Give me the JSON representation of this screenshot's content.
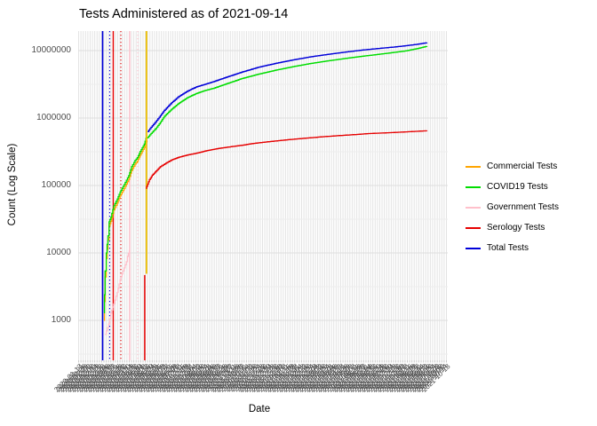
{
  "title": "Tests Administered as of 2021-09-14",
  "x_axis": {
    "label": "Date",
    "start_date": "2020-03-01",
    "tick_step_days": 4,
    "tick_first_day": -44,
    "tick_last_day": 596,
    "tick_label_format": "YYYY-MM-DD"
  },
  "y_axis": {
    "label": "Count (Log Scale)",
    "scale": "log10",
    "tick_labels": [
      "10000000",
      "1000000",
      "100000",
      "10000",
      "1000"
    ],
    "tick_values": [
      10000000,
      1000000,
      100000,
      10000,
      1000
    ]
  },
  "legend": {
    "items": [
      {
        "label": "Commercial Tests",
        "color": "#FFA500"
      },
      {
        "label": "COVID19 Tests",
        "color": "#00DD00"
      },
      {
        "label": "Government Tests",
        "color": "#FFC0CB"
      },
      {
        "label": "Serology Tests",
        "color": "#E60000"
      },
      {
        "label": "Total Tests",
        "color": "#0000D9"
      }
    ]
  },
  "chart_data": {
    "type": "line",
    "title": "Tests Administered as of 2021-09-14",
    "xlabel": "Date",
    "ylabel": "Count (Log Scale)",
    "x_unit": "days since 2020-03-01",
    "y_scale": "log10",
    "ylim": [
      280,
      20000000
    ],
    "grid": {
      "x_step_days": 4,
      "y_major_decades": [
        3,
        4,
        5,
        6,
        7
      ],
      "y_minor_half_decades": [
        2.5,
        3.5,
        4.5,
        5.5,
        6.5
      ]
    },
    "series": [
      {
        "name": "Commercial Tests",
        "color": "#FFA500",
        "points": [
          [
            0,
            1000
          ],
          [
            1,
            1900
          ],
          [
            2,
            4400
          ],
          [
            4,
            8300
          ],
          [
            7,
            15500
          ],
          [
            9,
            25000
          ],
          [
            12,
            29500
          ],
          [
            17,
            43500
          ],
          [
            23,
            55000
          ],
          [
            28,
            70000
          ],
          [
            35,
            90000
          ],
          [
            43,
            123000
          ],
          [
            48,
            167000
          ],
          [
            54,
            207000
          ],
          [
            58,
            228000
          ],
          [
            63,
            283000
          ],
          [
            70,
            365000
          ],
          [
            73,
            445000
          ],
          [
            75,
            465000
          ]
        ]
      },
      {
        "name": "COVID19 Tests",
        "color": "#00DD00",
        "points": [
          [
            0,
            1300
          ],
          [
            1,
            2400
          ],
          [
            2,
            5400
          ],
          [
            4,
            10000
          ],
          [
            7,
            18000
          ],
          [
            9,
            29000
          ],
          [
            12,
            34000
          ],
          [
            17,
            50000
          ],
          [
            23,
            63000
          ],
          [
            28,
            80000
          ],
          [
            35,
            103000
          ],
          [
            43,
            140000
          ],
          [
            48,
            190000
          ],
          [
            54,
            235000
          ],
          [
            58,
            258000
          ],
          [
            63,
            320000
          ],
          [
            70,
            410000
          ],
          [
            73,
            500000
          ],
          [
            76,
            515000
          ],
          [
            82,
            590000
          ],
          [
            90,
            700000
          ],
          [
            98,
            860000
          ],
          [
            105,
            1060000
          ],
          [
            118,
            1360000
          ],
          [
            130,
            1650000
          ],
          [
            145,
            2000000
          ],
          [
            160,
            2300000
          ],
          [
            175,
            2550000
          ],
          [
            190,
            2750000
          ],
          [
            210,
            3150000
          ],
          [
            240,
            3850000
          ],
          [
            270,
            4500000
          ],
          [
            300,
            5150000
          ],
          [
            330,
            5800000
          ],
          [
            360,
            6450000
          ],
          [
            390,
            7050000
          ],
          [
            420,
            7650000
          ],
          [
            450,
            8250000
          ],
          [
            480,
            8850000
          ],
          [
            505,
            9400000
          ],
          [
            525,
            9900000
          ],
          [
            545,
            10700000
          ],
          [
            562,
            11600000
          ]
        ]
      },
      {
        "name": "Government Tests",
        "color": "#FFC0CB",
        "points": [
          [
            2,
            620
          ],
          [
            8,
            880
          ],
          [
            12,
            1280
          ],
          [
            17,
            1750
          ],
          [
            23,
            2600
          ],
          [
            28,
            4000
          ],
          [
            33,
            5400
          ],
          [
            39,
            7400
          ],
          [
            41,
            8900
          ],
          [
            44,
            11000
          ]
        ]
      },
      {
        "name": "Serology Tests",
        "color": "#E60000",
        "points": [
          [
            73,
            91000
          ],
          [
            76,
            105000
          ],
          [
            79,
            122000
          ],
          [
            84,
            142000
          ],
          [
            89,
            158000
          ],
          [
            98,
            190000
          ],
          [
            108,
            215000
          ],
          [
            118,
            240000
          ],
          [
            130,
            262000
          ],
          [
            145,
            283000
          ],
          [
            160,
            300000
          ],
          [
            180,
            330000
          ],
          [
            200,
            355000
          ],
          [
            220,
            375000
          ],
          [
            240,
            395000
          ],
          [
            260,
            420000
          ],
          [
            280,
            440000
          ],
          [
            300,
            458000
          ],
          [
            320,
            477000
          ],
          [
            340,
            494000
          ],
          [
            360,
            511000
          ],
          [
            380,
            527000
          ],
          [
            400,
            543000
          ],
          [
            420,
            557000
          ],
          [
            440,
            571000
          ],
          [
            460,
            588000
          ],
          [
            480,
            598000
          ],
          [
            500,
            608000
          ],
          [
            520,
            620000
          ],
          [
            540,
            633000
          ],
          [
            562,
            648000
          ]
        ]
      },
      {
        "name": "Total Tests",
        "color": "#0000D9",
        "points": [
          [
            76,
            630000
          ],
          [
            82,
            730000
          ],
          [
            90,
            880000
          ],
          [
            98,
            1080000
          ],
          [
            105,
            1300000
          ],
          [
            118,
            1700000
          ],
          [
            130,
            2080000
          ],
          [
            145,
            2500000
          ],
          [
            160,
            2880000
          ],
          [
            175,
            3150000
          ],
          [
            190,
            3450000
          ],
          [
            210,
            3950000
          ],
          [
            240,
            4800000
          ],
          [
            270,
            5700000
          ],
          [
            300,
            6500000
          ],
          [
            330,
            7300000
          ],
          [
            360,
            8100000
          ],
          [
            390,
            8800000
          ],
          [
            420,
            9500000
          ],
          [
            450,
            10200000
          ],
          [
            480,
            10800000
          ],
          [
            505,
            11300000
          ],
          [
            525,
            11800000
          ],
          [
            545,
            12400000
          ],
          [
            562,
            13100000
          ]
        ]
      }
    ],
    "spike_segments": [
      {
        "series": "Serology Tests",
        "color": "#E60000",
        "x_day": 71,
        "from": 285,
        "to": 4700
      }
    ],
    "vlines": [
      {
        "color": "#0000D9",
        "style": "solid",
        "x_day": -2.3,
        "width": 1.6
      },
      {
        "color": "#0000D9",
        "style": "dotted",
        "x_day": 10,
        "width": 1.1
      },
      {
        "color": "#E60000",
        "style": "solid",
        "x_day": 16.2,
        "width": 1.4
      },
      {
        "color": "#E60000",
        "style": "dotted",
        "x_day": 29.4,
        "width": 1.1
      },
      {
        "color": "#FFC0CB",
        "style": "solid",
        "x_day": 44.8,
        "width": 1.4
      },
      {
        "color": "#FFC0CB",
        "style": "dotted",
        "x_day": 58.8,
        "width": 1.1
      },
      {
        "color": "#EDC001",
        "style": "solid",
        "x_day": 74,
        "width": 1.8,
        "to_value": 4900
      }
    ],
    "legend_position": "right",
    "panel_background": "#FFFFFF",
    "gridline_color": "#E3E3E3"
  }
}
